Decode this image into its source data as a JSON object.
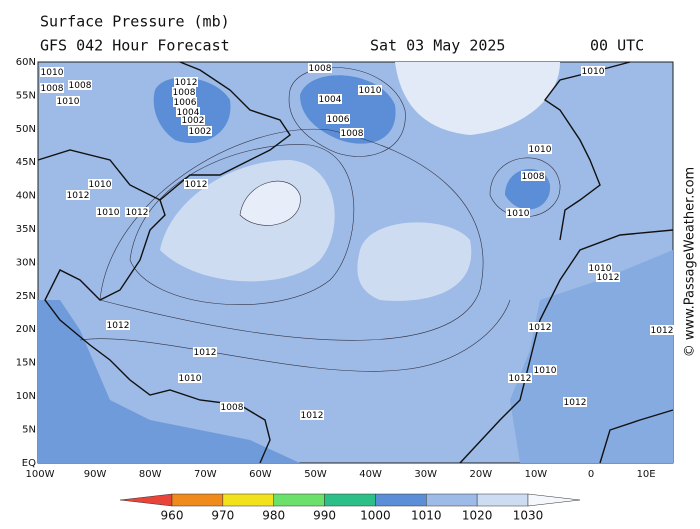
{
  "header": {
    "title": "Surface Pressure (mb)",
    "subtitle": "GFS 042 Hour Forecast",
    "date": "Sat 03 May 2025",
    "time": "00 UTC"
  },
  "lat_labels": [
    "60N",
    "55N",
    "50N",
    "45N",
    "40N",
    "35N",
    "30N",
    "25N",
    "20N",
    "15N",
    "10N",
    "5N",
    "EQ"
  ],
  "lon_labels": [
    "100W",
    "90W",
    "80W",
    "70W",
    "60W",
    "50W",
    "40W",
    "30W",
    "20W",
    "10W",
    "0",
    "10E"
  ],
  "colorbar": {
    "labels": [
      "960",
      "970",
      "980",
      "990",
      "1000",
      "1010",
      "1020",
      "1030"
    ]
  },
  "watermark": "© www.PassageWeather.com",
  "isobar_labels": [
    "1010",
    "1008",
    "1010",
    "1008",
    "1012",
    "1008",
    "1006",
    "1004",
    "1002",
    "1002",
    "1008",
    "1004",
    "1010",
    "1006",
    "1008",
    "1010",
    "1010",
    "1008",
    "1010",
    "1012",
    "1010",
    "1012",
    "1010",
    "1012",
    "1012",
    "1012",
    "1010",
    "1008",
    "1012",
    "1012",
    "1010",
    "1012",
    "1012",
    "1010",
    "1012",
    "1012"
  ]
}
